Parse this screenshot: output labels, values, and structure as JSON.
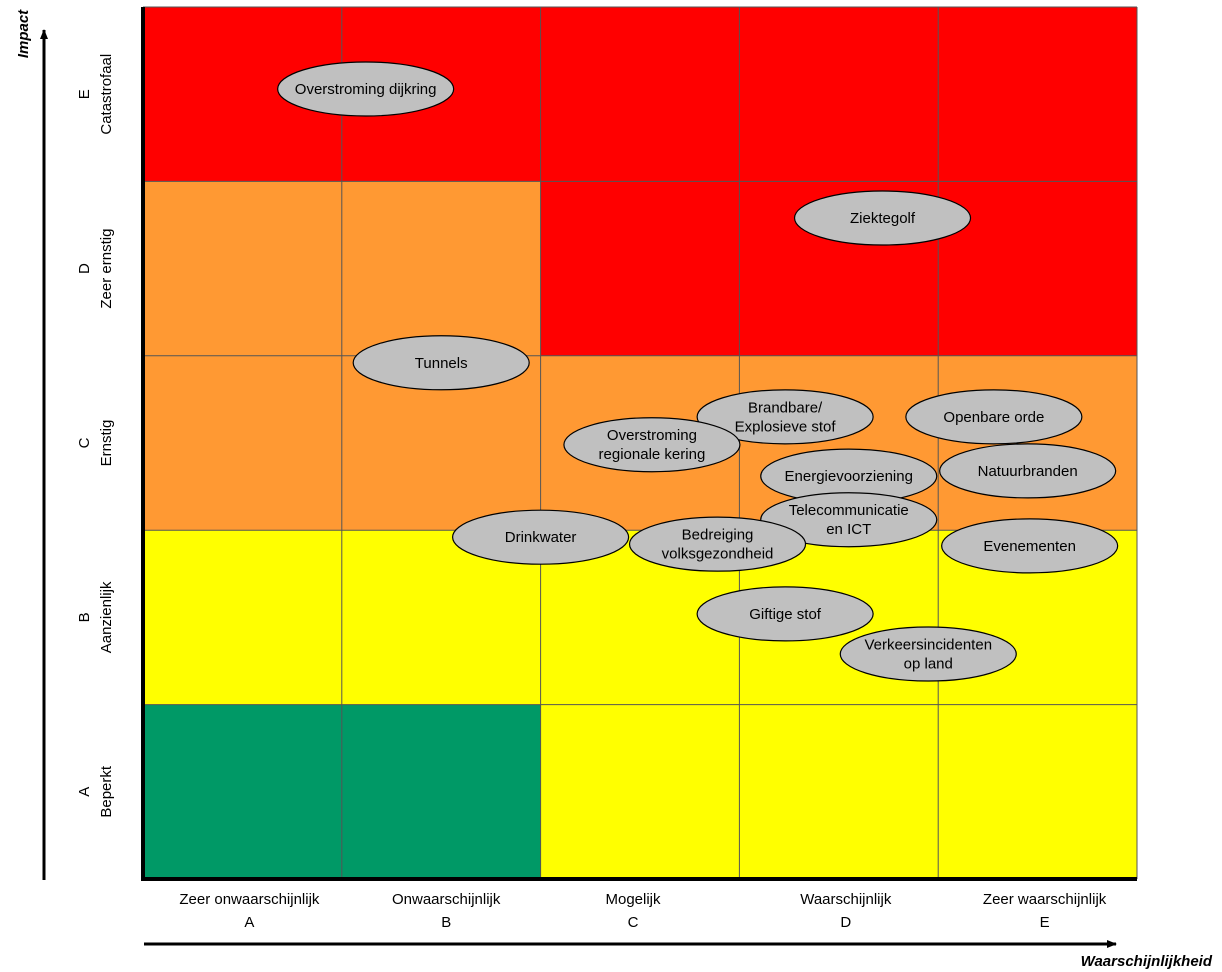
{
  "chart_data": {
    "type": "heatmap",
    "title": "",
    "ylabel": "Impact",
    "xlabel": "Waarschijnlijkheid",
    "x_categories": [
      {
        "name": "Zeer onwaarschijnlijk",
        "code": "A"
      },
      {
        "name": "Onwaarschijnlijk",
        "code": "B"
      },
      {
        "name": "Mogelijk",
        "code": "C"
      },
      {
        "name": "Waarschijnlijk",
        "code": "D"
      },
      {
        "name": "Zeer waarschijnlijk",
        "code": "E"
      }
    ],
    "y_categories": [
      {
        "code": "A",
        "name": "Beperkt"
      },
      {
        "code": "B",
        "name": "Aanzienlijk"
      },
      {
        "code": "C",
        "name": "Ernstig"
      },
      {
        "code": "D",
        "name": "Zeer ernstig"
      },
      {
        "code": "E",
        "name": "Catastrofaal"
      }
    ],
    "colors": {
      "green": "#009966",
      "yellow": "#FFFF00",
      "orange": "#FF9933",
      "red": "#FF0000",
      "bubble_fill": "#C0C0C0",
      "grid": "#555555"
    },
    "cell_zones": [
      [
        "green",
        "green",
        "yellow",
        "yellow",
        "yellow"
      ],
      [
        "yellow",
        "yellow",
        "yellow",
        "yellow",
        "yellow"
      ],
      [
        "orange",
        "orange",
        "orange",
        "orange",
        "orange"
      ],
      [
        "orange",
        "orange",
        "red",
        "red",
        "red"
      ],
      [
        "red",
        "red",
        "red",
        "red",
        "red"
      ]
    ],
    "scenarios": [
      {
        "lines": [
          "Overstroming dijkring"
        ],
        "x": 1.12,
        "y": 4.53
      },
      {
        "lines": [
          "Ziektegolf"
        ],
        "x": 3.72,
        "y": 3.79
      },
      {
        "lines": [
          "Tunnels"
        ],
        "x": 1.5,
        "y": 2.96
      },
      {
        "lines": [
          "Brandbare/",
          "Explosieve stof"
        ],
        "x": 3.23,
        "y": 2.65
      },
      {
        "lines": [
          "Openbare orde"
        ],
        "x": 4.28,
        "y": 2.65
      },
      {
        "lines": [
          "Overstroming",
          "regionale kering"
        ],
        "x": 2.56,
        "y": 2.49
      },
      {
        "lines": [
          "Natuurbranden"
        ],
        "x": 4.45,
        "y": 2.34
      },
      {
        "lines": [
          "Energievoorziening"
        ],
        "x": 3.55,
        "y": 2.31
      },
      {
        "lines": [
          "Telecommunicatie",
          "en ICT"
        ],
        "x": 3.55,
        "y": 2.06
      },
      {
        "lines": [
          "Drinkwater"
        ],
        "x": 2.0,
        "y": 1.96
      },
      {
        "lines": [
          "Bedreiging",
          "volksgezondheid"
        ],
        "x": 2.89,
        "y": 1.92
      },
      {
        "lines": [
          "Evenementen"
        ],
        "x": 4.46,
        "y": 1.91
      },
      {
        "lines": [
          "Giftige stof"
        ],
        "x": 3.23,
        "y": 1.52
      },
      {
        "lines": [
          "Verkeersincidenten",
          "op land"
        ],
        "x": 3.95,
        "y": 1.29
      }
    ]
  }
}
